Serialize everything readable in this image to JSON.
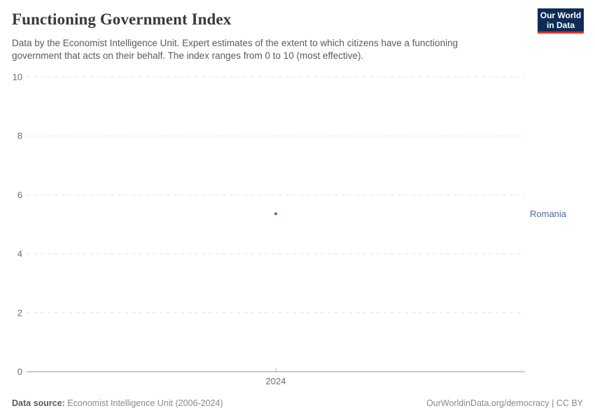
{
  "header": {
    "title": "Functioning Government Index",
    "subtitle": "Data by the Economist Intelligence Unit. Expert estimates of the extent to which citizens have a functioning government that acts on their behalf. The index ranges from 0 to 10 (most effective)."
  },
  "logo": {
    "line1": "Our World",
    "line2": "in Data",
    "background_color": "#0d2d56",
    "accent_color": "#d7362e"
  },
  "chart_data": {
    "type": "scatter",
    "title": "Functioning Government Index",
    "x": [
      2024
    ],
    "series": [
      {
        "name": "Romania",
        "values": [
          5.36
        ],
        "color": "#4c6a9c"
      }
    ],
    "xlabel": "",
    "ylabel": "",
    "ylim": [
      0,
      10
    ],
    "yticks": [
      0,
      2,
      4,
      6,
      8,
      10
    ],
    "xticks": [
      "2024"
    ],
    "grid": "horizontal-dashed",
    "gridline_color": "#e2e2e2",
    "axis_line_color": "#949494",
    "tick_label_color": "#6e6e6e",
    "legend": "entity-label-right-of-plot",
    "entity_label": "Romania"
  },
  "footer": {
    "source_label": "Data source:",
    "source_value": " Economist Intelligence Unit (2006-2024)",
    "credit": "OurWorldinData.org/democracy | CC BY"
  }
}
